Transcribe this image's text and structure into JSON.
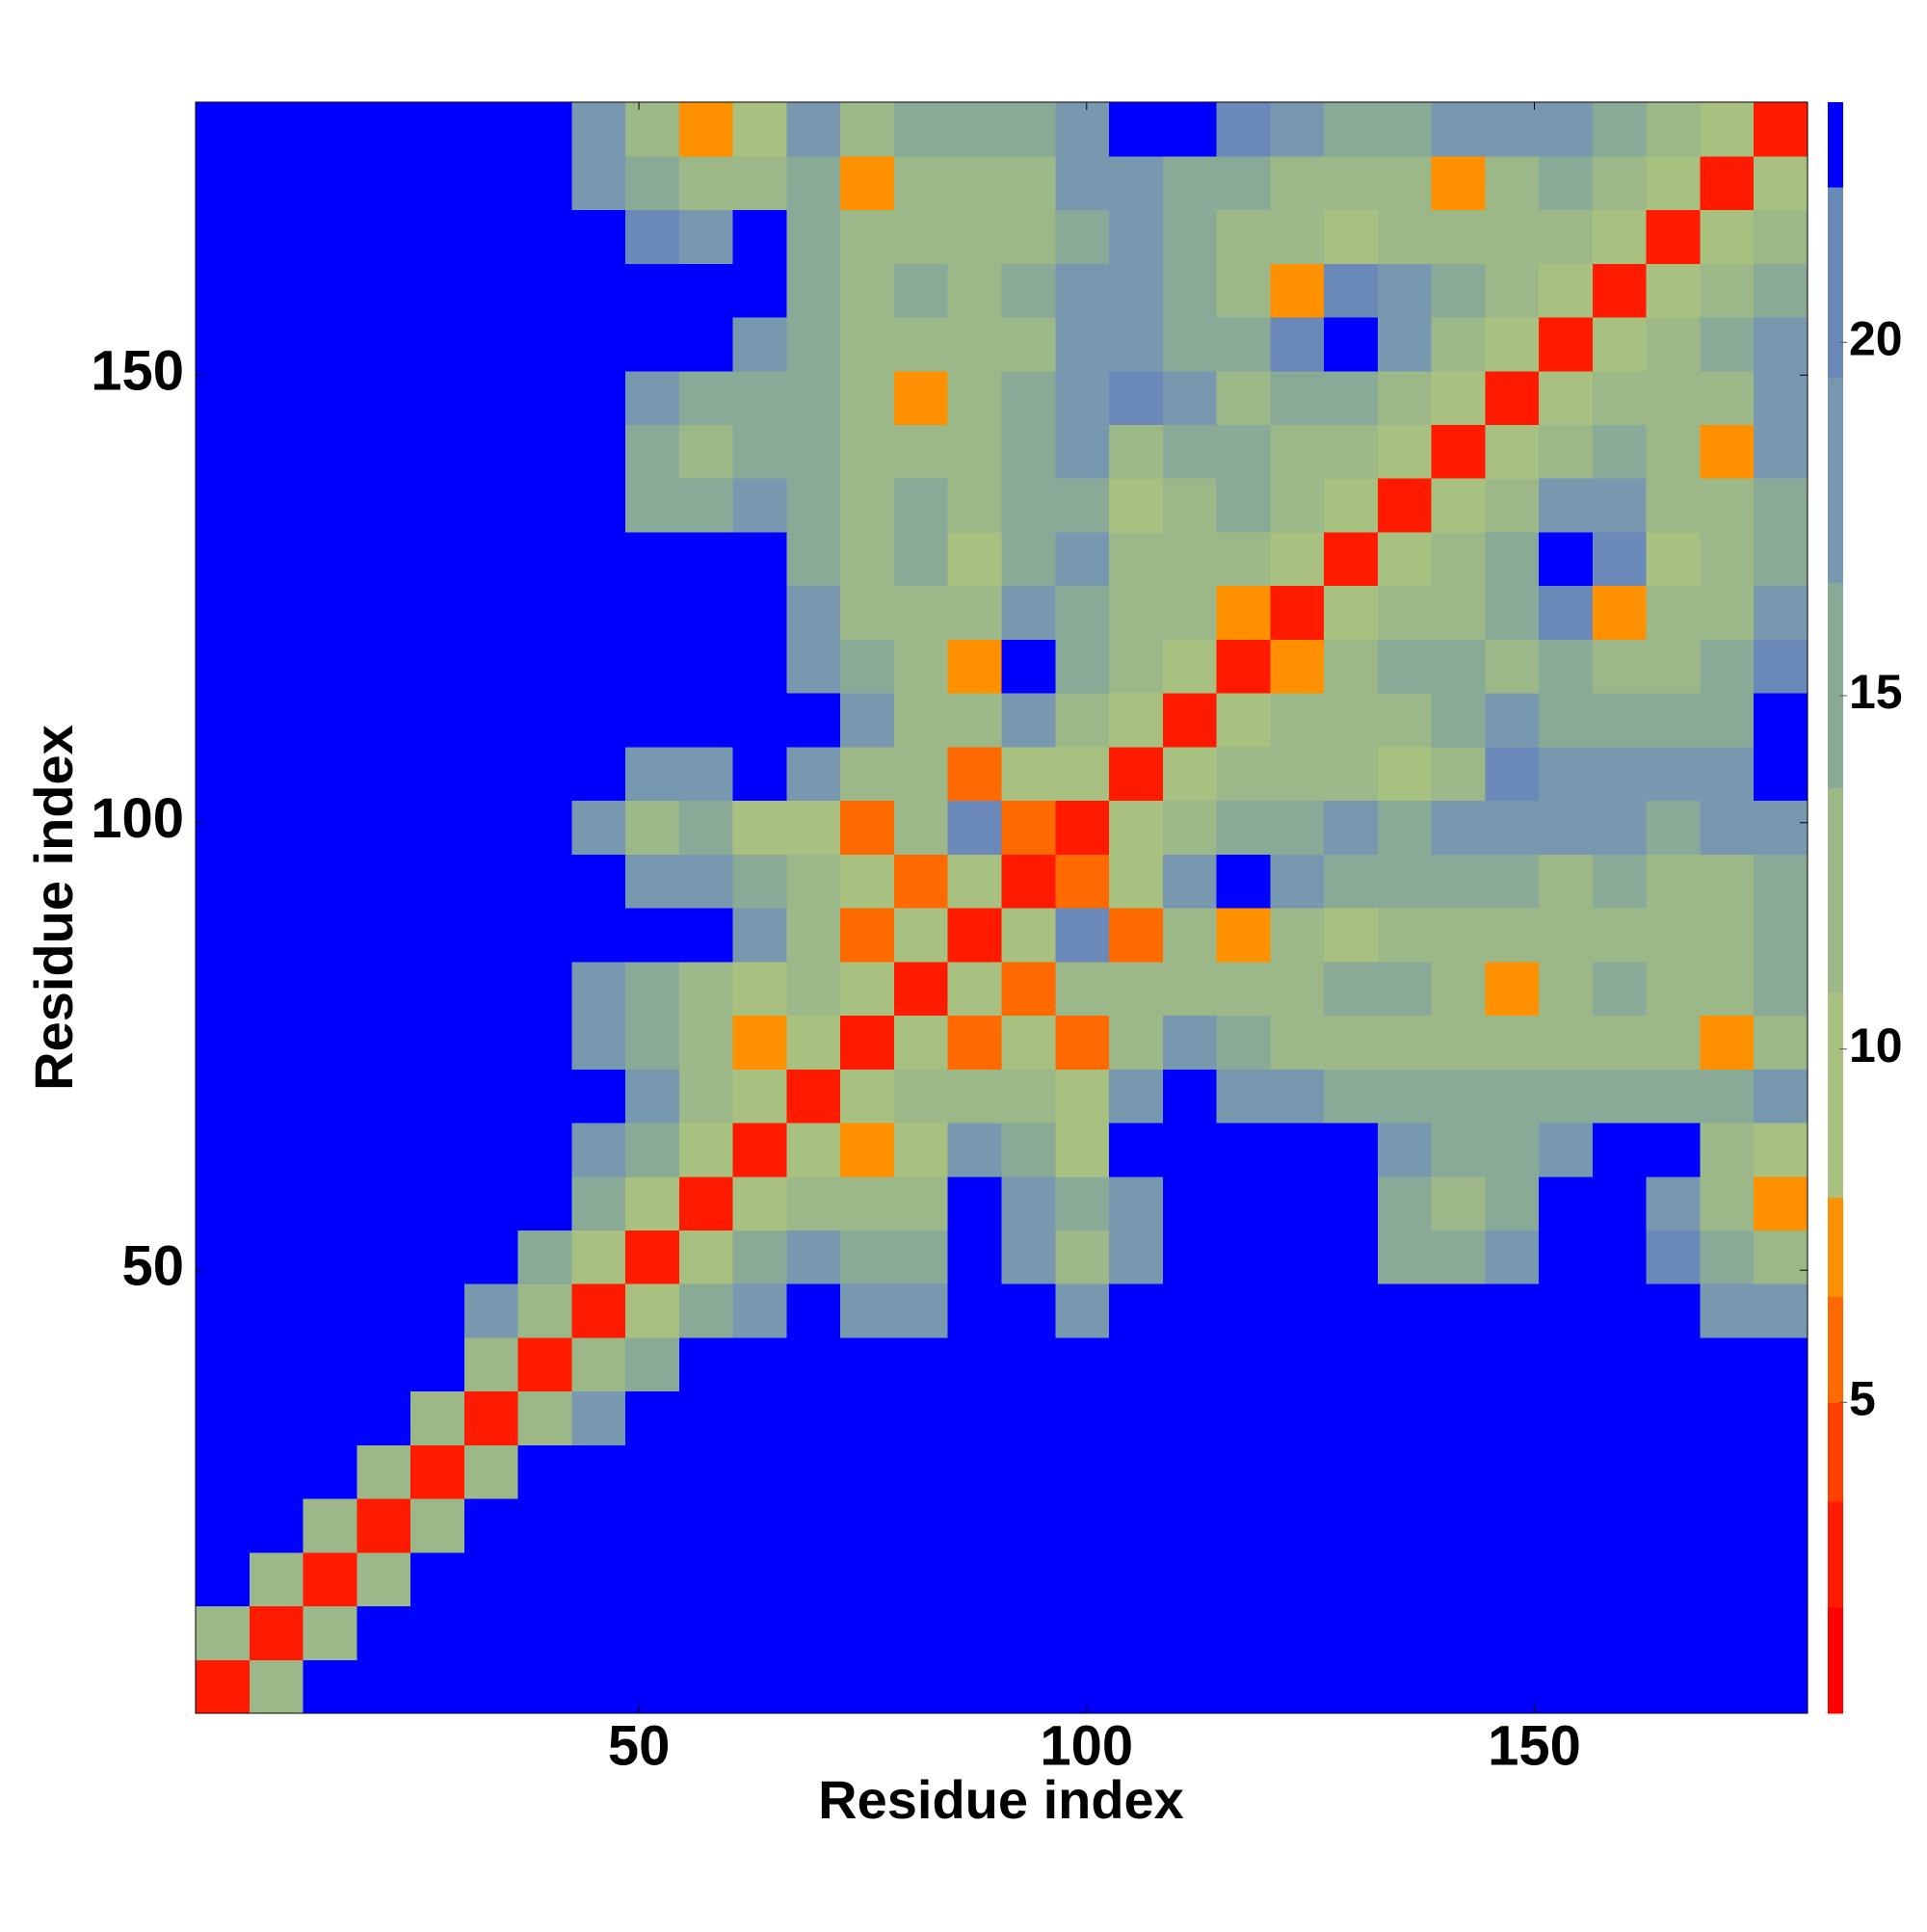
{
  "chart_data": {
    "type": "heatmap",
    "x_label": "Residue index",
    "y_label": "Residue index",
    "x": [
      3.5,
      9.5,
      15.5,
      21.5,
      27.5,
      33.5,
      39.5,
      45.5,
      51.5,
      57.5,
      63.5,
      69.5,
      75.5,
      81.5,
      87.5,
      93.5,
      99.5,
      105.5,
      111.5,
      117.5,
      123.5,
      129.5,
      135.5,
      141.5,
      147.5,
      153.5,
      159.5,
      165.5,
      171.5,
      177.5
    ],
    "y": [
      3.5,
      9.5,
      15.5,
      21.5,
      27.5,
      33.5,
      39.5,
      45.5,
      51.5,
      57.5,
      63.5,
      69.5,
      75.5,
      81.5,
      87.5,
      93.5,
      99.5,
      105.5,
      111.5,
      117.5,
      123.5,
      129.5,
      135.5,
      141.5,
      147.5,
      153.5,
      159.5,
      165.5,
      171.5,
      177.5
    ],
    "z": [
      [
        3,
        11,
        23,
        23,
        23,
        23,
        23,
        23,
        23,
        23,
        23,
        23,
        23,
        23,
        23,
        23,
        23,
        23,
        23,
        23,
        23,
        23,
        23,
        23,
        23,
        23,
        23,
        23,
        23,
        23
      ],
      [
        11,
        3,
        11,
        23,
        23,
        23,
        23,
        23,
        23,
        23,
        23,
        23,
        23,
        23,
        23,
        23,
        23,
        23,
        23,
        23,
        23,
        23,
        23,
        23,
        23,
        23,
        23,
        23,
        23,
        23
      ],
      [
        23,
        11,
        3,
        11,
        23,
        23,
        23,
        23,
        23,
        23,
        23,
        23,
        23,
        23,
        23,
        23,
        23,
        23,
        23,
        23,
        23,
        23,
        23,
        23,
        23,
        23,
        23,
        23,
        23,
        23
      ],
      [
        23,
        23,
        11,
        3,
        11,
        23,
        23,
        23,
        23,
        23,
        23,
        23,
        23,
        23,
        23,
        23,
        23,
        23,
        23,
        23,
        23,
        23,
        23,
        23,
        23,
        23,
        23,
        23,
        23,
        23
      ],
      [
        23,
        23,
        23,
        11,
        3,
        11,
        23,
        23,
        23,
        23,
        23,
        23,
        23,
        23,
        23,
        23,
        23,
        23,
        23,
        23,
        23,
        23,
        23,
        23,
        23,
        23,
        23,
        23,
        23,
        23
      ],
      [
        23,
        23,
        23,
        23,
        11,
        3,
        11,
        19,
        23,
        23,
        23,
        23,
        23,
        23,
        23,
        23,
        23,
        23,
        23,
        23,
        23,
        23,
        23,
        23,
        23,
        23,
        23,
        23,
        23,
        23
      ],
      [
        23,
        23,
        23,
        23,
        23,
        11,
        3,
        11,
        16,
        23,
        23,
        23,
        23,
        23,
        23,
        23,
        23,
        23,
        23,
        23,
        23,
        23,
        23,
        23,
        23,
        23,
        23,
        23,
        23,
        23
      ],
      [
        23,
        23,
        23,
        23,
        23,
        19,
        11,
        3,
        10,
        14,
        19,
        23,
        19,
        18,
        23,
        23,
        19,
        23,
        23,
        23,
        23,
        23,
        23,
        23,
        23,
        23,
        23,
        23,
        19,
        19
      ],
      [
        23,
        23,
        23,
        23,
        23,
        23,
        16,
        10,
        3,
        9,
        14,
        18,
        14,
        14,
        23,
        19,
        13,
        17,
        23,
        23,
        23,
        23,
        16,
        14,
        19,
        23,
        23,
        21,
        14,
        13
      ],
      [
        23,
        23,
        23,
        23,
        23,
        23,
        23,
        14,
        9,
        3,
        8,
        13,
        13,
        12,
        23,
        19,
        14,
        19,
        23,
        23,
        23,
        23,
        16,
        13,
        16,
        23,
        23,
        19,
        13,
        7
      ],
      [
        23,
        23,
        23,
        23,
        23,
        23,
        23,
        19,
        14,
        8,
        3,
        10,
        7,
        10,
        17,
        16,
        8,
        23,
        23,
        23,
        23,
        23,
        19,
        15,
        15,
        19,
        23,
        23,
        12,
        8
      ],
      [
        23,
        23,
        23,
        23,
        23,
        23,
        23,
        23,
        18,
        13,
        10,
        3,
        9,
        12,
        11,
        12,
        10,
        19,
        23,
        19,
        17,
        16,
        16,
        15,
        14,
        15,
        16,
        16,
        15,
        17
      ],
      [
        23,
        23,
        23,
        23,
        23,
        23,
        23,
        19,
        14,
        13,
        7,
        9,
        3,
        9,
        6,
        8,
        6,
        13,
        19,
        15,
        13,
        12,
        12,
        12,
        12,
        13,
        13,
        12,
        7,
        13
      ],
      [
        23,
        23,
        23,
        23,
        23,
        23,
        23,
        18,
        14,
        12,
        10,
        12,
        9,
        3,
        9,
        6,
        13,
        11,
        13,
        13,
        13,
        14,
        14,
        12,
        7,
        13,
        14,
        13,
        12,
        14
      ],
      [
        23,
        23,
        23,
        23,
        23,
        23,
        23,
        23,
        23,
        23,
        17,
        11,
        6,
        9,
        3,
        9,
        21,
        6,
        13,
        7,
        12,
        8,
        13,
        13,
        13,
        13,
        13,
        12,
        12,
        15
      ],
      [
        23,
        23,
        23,
        23,
        23,
        23,
        23,
        23,
        19,
        19,
        16,
        12,
        8,
        6,
        9,
        3,
        6,
        9,
        19,
        23,
        19,
        14,
        15,
        14,
        14,
        13,
        14,
        13,
        13,
        14
      ],
      [
        23,
        23,
        23,
        23,
        23,
        23,
        23,
        19,
        13,
        14,
        8,
        10,
        6,
        13,
        21,
        6,
        3,
        9,
        12,
        14,
        16,
        17,
        16,
        19,
        17,
        17,
        19,
        16,
        17,
        17
      ],
      [
        23,
        23,
        23,
        23,
        23,
        23,
        23,
        23,
        17,
        19,
        23,
        19,
        13,
        11,
        6,
        9,
        9,
        3,
        10,
        12,
        13,
        12,
        8,
        13,
        21,
        19,
        19,
        19,
        19,
        23
      ],
      [
        23,
        23,
        23,
        23,
        23,
        23,
        23,
        23,
        23,
        23,
        23,
        23,
        19,
        13,
        13,
        19,
        12,
        10,
        3,
        10,
        11,
        13,
        13,
        14,
        19,
        16,
        15,
        15,
        16,
        23
      ],
      [
        23,
        23,
        23,
        23,
        23,
        23,
        23,
        23,
        23,
        23,
        23,
        19,
        15,
        13,
        7,
        23,
        14,
        12,
        10,
        3,
        7,
        12,
        14,
        15,
        13,
        14,
        13,
        13,
        14,
        21
      ],
      [
        23,
        23,
        23,
        23,
        23,
        23,
        23,
        23,
        23,
        23,
        23,
        17,
        13,
        13,
        12,
        19,
        16,
        13,
        11,
        7,
        3,
        10,
        12,
        13,
        16,
        21,
        7,
        11,
        13,
        19
      ],
      [
        23,
        23,
        23,
        23,
        23,
        23,
        23,
        23,
        23,
        23,
        23,
        16,
        12,
        14,
        8,
        14,
        17,
        12,
        13,
        12,
        10,
        3,
        10,
        12,
        14,
        23,
        21,
        8,
        12,
        15
      ],
      [
        23,
        23,
        23,
        23,
        23,
        23,
        23,
        23,
        16,
        16,
        19,
        16,
        12,
        14,
        13,
        15,
        16,
        8,
        13,
        14,
        12,
        10,
        3,
        10,
        12,
        19,
        19,
        11,
        11,
        16
      ],
      [
        23,
        23,
        23,
        23,
        23,
        23,
        23,
        23,
        14,
        13,
        15,
        15,
        12,
        12,
        13,
        14,
        19,
        13,
        14,
        15,
        13,
        12,
        10,
        3,
        9,
        13,
        15,
        12,
        7,
        17
      ],
      [
        23,
        23,
        23,
        23,
        23,
        23,
        23,
        23,
        19,
        16,
        15,
        14,
        12,
        7,
        13,
        14,
        17,
        21,
        19,
        13,
        16,
        14,
        12,
        9,
        3,
        10,
        12,
        13,
        13,
        19
      ],
      [
        23,
        23,
        23,
        23,
        23,
        23,
        23,
        23,
        23,
        23,
        19,
        15,
        13,
        13,
        13,
        13,
        17,
        19,
        16,
        14,
        21,
        23,
        19,
        13,
        10,
        3,
        10,
        12,
        14,
        17
      ],
      [
        23,
        23,
        23,
        23,
        23,
        23,
        23,
        23,
        23,
        23,
        23,
        16,
        13,
        14,
        13,
        14,
        19,
        19,
        15,
        13,
        7,
        21,
        19,
        15,
        12,
        10,
        3,
        9,
        12,
        14
      ],
      [
        23,
        23,
        23,
        23,
        23,
        23,
        23,
        23,
        21,
        19,
        23,
        16,
        12,
        13,
        12,
        13,
        16,
        19,
        15,
        13,
        11,
        8,
        11,
        12,
        13,
        12,
        9,
        3,
        10,
        12
      ],
      [
        23,
        23,
        23,
        23,
        23,
        23,
        23,
        19,
        14,
        13,
        12,
        15,
        7,
        12,
        12,
        13,
        17,
        19,
        16,
        14,
        13,
        12,
        11,
        7,
        13,
        14,
        12,
        10,
        3,
        9
      ],
      [
        23,
        23,
        23,
        23,
        23,
        23,
        23,
        19,
        13,
        7,
        8,
        17,
        13,
        14,
        15,
        14,
        17,
        23,
        23,
        21,
        19,
        15,
        16,
        17,
        19,
        17,
        14,
        12,
        9,
        3
      ]
    ],
    "xlim": [
      0.5,
      180.5
    ],
    "ylim": [
      0.5,
      180.5
    ],
    "xticks": [
      50,
      100,
      150
    ],
    "yticks": [
      50,
      100,
      150
    ],
    "colorbar": {
      "bounds": [
        0.6,
        2.1,
        3.6,
        5.0,
        6.5,
        7.9,
        10.8,
        13.7,
        16.6,
        19.5,
        22.2,
        23.4
      ],
      "colors": [
        "#ff0000",
        "#ff1a00",
        "#ff4000",
        "#ff6a00",
        "#ff9000",
        "#a8c080",
        "#9cb888",
        "#8aaa98",
        "#7898b0",
        "#6a88b8",
        "#0000ff"
      ],
      "ticks": [
        5,
        10,
        15,
        20
      ]
    }
  }
}
